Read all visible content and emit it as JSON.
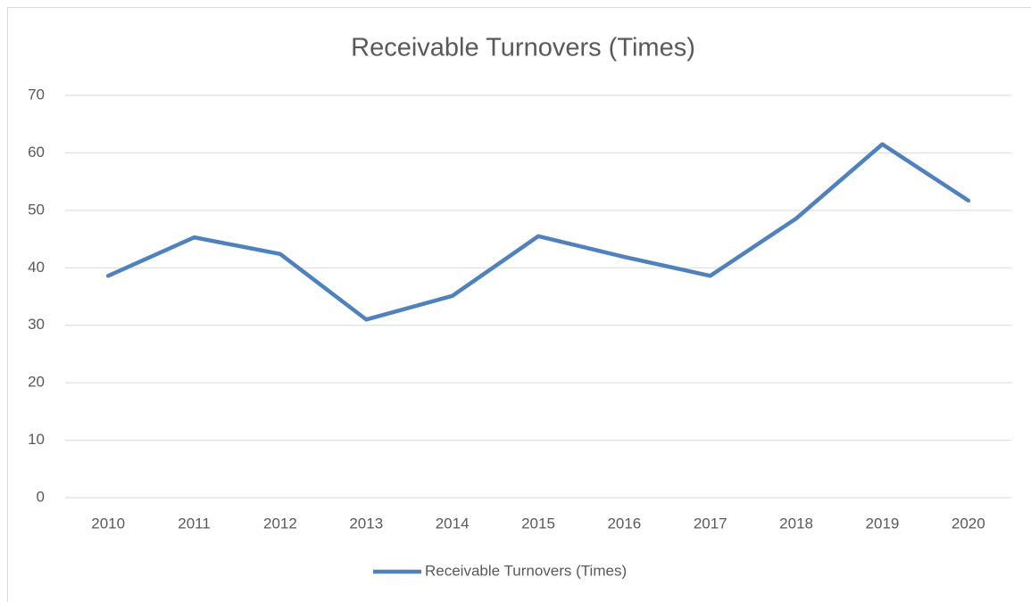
{
  "chart_data": {
    "type": "line",
    "title": "Receivable Turnovers (Times)",
    "categories": [
      "2010",
      "2011",
      "2012",
      "2013",
      "2014",
      "2015",
      "2016",
      "2017",
      "2018",
      "2019",
      "2020"
    ],
    "series": [
      {
        "name": "Receivable Turnovers (Times)",
        "color": "#4f81bd",
        "values": [
          38.6,
          45.3,
          42.4,
          31.0,
          35.1,
          45.5,
          41.9,
          38.6,
          48.6,
          61.5,
          51.7
        ]
      }
    ],
    "ylim": [
      0,
      70
    ],
    "yticks": [
      0,
      10,
      20,
      30,
      40,
      50,
      60,
      70
    ],
    "grid": true,
    "legend": "bottom"
  }
}
